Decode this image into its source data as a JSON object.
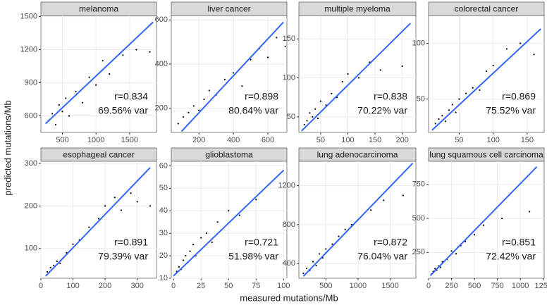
{
  "x_label": "measured mutations/Mb",
  "y_label": "predicted mutations/Mb",
  "chart_data": [
    {
      "type": "scatter",
      "title": "melanoma",
      "annotations": [
        "r=0.834",
        "69.56% var"
      ],
      "color": "#000000",
      "fit_color": "#3366ff",
      "x": [
        300,
        350,
        400,
        450,
        500,
        550,
        600,
        700,
        800,
        900,
        1000,
        1100,
        1200,
        1400,
        1600,
        1800
      ],
      "y": [
        560,
        620,
        520,
        700,
        640,
        760,
        600,
        820,
        720,
        950,
        880,
        1100,
        980,
        1150,
        1200,
        1180
      ],
      "fit": {
        "x": [
          250,
          1850
        ],
        "y": [
          530,
          1450
        ]
      },
      "xlim": [
        180,
        1900
      ],
      "ylim": [
        450,
        1510
      ],
      "xticks": [
        500,
        1000,
        1500
      ],
      "yticks": [
        600,
        900,
        1200,
        1500
      ],
      "grid": true
    },
    {
      "type": "scatter",
      "title": "liver cancer",
      "annotations": [
        "r=0.898",
        "80.64% var"
      ],
      "color": "#000000",
      "fit_color": "#3366ff",
      "x": [
        80,
        110,
        140,
        170,
        200,
        230,
        260,
        300,
        350,
        400,
        450,
        500,
        550,
        600,
        650,
        700
      ],
      "y": [
        130,
        160,
        180,
        210,
        190,
        240,
        280,
        260,
        330,
        360,
        300,
        420,
        470,
        430,
        520,
        480
      ],
      "fit": {
        "x": [
          100,
          690
        ],
        "y": [
          95,
          590
        ]
      },
      "xlim": [
        40,
        710
      ],
      "ylim": [
        90,
        620
      ],
      "xticks": [
        200,
        400,
        600
      ],
      "yticks": [
        200,
        400,
        600
      ],
      "grid": true
    },
    {
      "type": "scatter",
      "title": "multiple myeloma",
      "annotations": [
        "r=0.838",
        "70.22% var"
      ],
      "color": "#000000",
      "fit_color": "#3366ff",
      "x": [
        20,
        25,
        30,
        35,
        40,
        45,
        50,
        60,
        70,
        80,
        90,
        100,
        120,
        140,
        160,
        200
      ],
      "y": [
        40,
        45,
        55,
        50,
        60,
        48,
        70,
        65,
        80,
        75,
        95,
        105,
        100,
        120,
        110,
        115
      ],
      "fit": {
        "x": [
          15,
          215
        ],
        "y": [
          32,
          170
        ]
      },
      "xlim": [
        10,
        225
      ],
      "ylim": [
        30,
        180
      ],
      "xticks": [
        50,
        100,
        150,
        200
      ],
      "yticks": [
        50,
        100,
        150
      ],
      "grid": true
    },
    {
      "type": "scatter",
      "title": "colorectal cancer",
      "annotations": [
        "r=0.869",
        "75.52% var"
      ],
      "color": "#000000",
      "fit_color": "#3366ff",
      "x": [
        15,
        20,
        25,
        30,
        35,
        40,
        45,
        50,
        60,
        70,
        80,
        90,
        100,
        120,
        140,
        160
      ],
      "y": [
        28,
        32,
        35,
        30,
        40,
        45,
        38,
        50,
        55,
        60,
        58,
        75,
        80,
        95,
        100,
        90
      ],
      "fit": {
        "x": [
          10,
          170
        ],
        "y": [
          22,
          113
        ]
      },
      "xlim": [
        5,
        175
      ],
      "ylim": [
        20,
        125
      ],
      "xticks": [
        50,
        100,
        150
      ],
      "yticks": [
        50,
        100
      ],
      "grid": true
    },
    {
      "type": "scatter",
      "title": "esophageal cancer",
      "annotations": [
        "r=0.891",
        "79.39% var"
      ],
      "color": "#000000",
      "fit_color": "#3366ff",
      "x": [
        20,
        30,
        40,
        50,
        60,
        80,
        100,
        120,
        150,
        180,
        200,
        230,
        250,
        280,
        300,
        340
      ],
      "y": [
        45,
        55,
        60,
        70,
        65,
        90,
        110,
        120,
        150,
        170,
        200,
        220,
        190,
        230,
        210,
        200
      ],
      "fit": {
        "x": [
          15,
          340
        ],
        "y": [
          35,
          290
        ]
      },
      "xlim": [
        0,
        360
      ],
      "ylim": [
        30,
        305
      ],
      "xticks": [
        0,
        100,
        200,
        300
      ],
      "yticks": [
        100,
        200,
        300
      ],
      "grid": true
    },
    {
      "type": "scatter",
      "title": "glioblastoma",
      "annotations": [
        "r=0.721",
        "51.98% var"
      ],
      "color": "#000000",
      "fit_color": "#3366ff",
      "x": [
        3,
        5,
        7,
        9,
        11,
        13,
        15,
        18,
        20,
        25,
        30,
        35,
        40,
        50,
        60,
        75
      ],
      "y": [
        13,
        15,
        14,
        18,
        20,
        17,
        22,
        25,
        20,
        28,
        30,
        26,
        35,
        40,
        38,
        45
      ],
      "fit": {
        "x": [
          0,
          100
        ],
        "y": [
          11,
          58
        ]
      },
      "xlim": [
        -2,
        103
      ],
      "ylim": [
        10,
        62
      ],
      "xticks": [
        0,
        25,
        50,
        75,
        100
      ],
      "yticks": [
        10,
        20,
        30,
        40,
        50,
        60
      ],
      "grid": true
    },
    {
      "type": "scatter",
      "title": "lung adenocarcinoma",
      "annotations": [
        "r=0.872",
        "76.04% var"
      ],
      "color": "#000000",
      "fit_color": "#3366ff",
      "x": [
        150,
        200,
        250,
        300,
        350,
        400,
        450,
        500,
        600,
        700,
        800,
        900,
        1000,
        1200,
        1400,
        1700
      ],
      "y": [
        300,
        350,
        330,
        420,
        380,
        500,
        460,
        550,
        600,
        680,
        750,
        800,
        850,
        950,
        1050,
        1100
      ],
      "fit": {
        "x": [
          150,
          1850
        ],
        "y": [
          270,
          1430
        ]
      },
      "xlim": [
        80,
        1900
      ],
      "ylim": [
        250,
        1450
      ],
      "xticks": [
        500,
        1000,
        1500
      ],
      "yticks": [
        400,
        800,
        1200
      ],
      "grid": true
    },
    {
      "type": "scatter",
      "title": "lung squamous cell carcinoma",
      "annotations": [
        "r=0.851",
        "72.42% var"
      ],
      "color": "#000000",
      "fit_color": "#3366ff",
      "x": [
        30,
        50,
        70,
        90,
        110,
        130,
        150,
        200,
        250,
        300,
        350,
        400,
        500,
        600,
        800,
        1100
      ],
      "y": [
        90,
        110,
        130,
        120,
        150,
        140,
        180,
        200,
        260,
        240,
        300,
        330,
        380,
        450,
        500,
        550
      ],
      "fit": {
        "x": [
          20,
          1180
        ],
        "y": [
          80,
          880
        ]
      },
      "xlim": [
        0,
        1260
      ],
      "ylim": [
        60,
        920
      ],
      "xticks": [
        0,
        250,
        500,
        750,
        1000,
        1250
      ],
      "yticks": [
        250,
        500,
        750
      ],
      "grid": true
    }
  ]
}
